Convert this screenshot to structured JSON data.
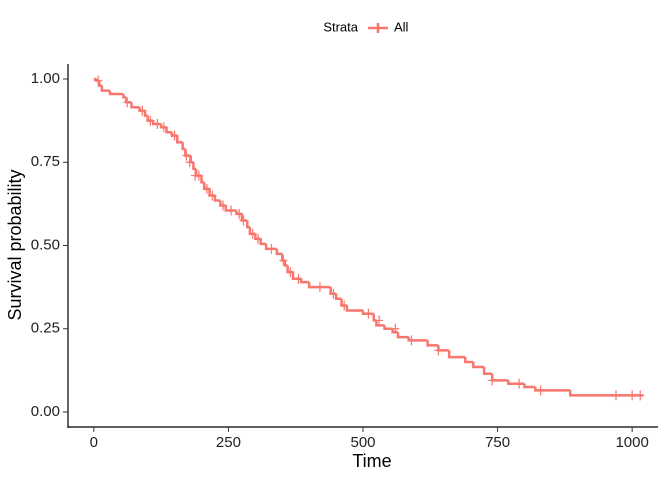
{
  "chart_data": {
    "type": "step",
    "x_label": "Time",
    "y_label": "Survival probability",
    "legend_title": "Strata",
    "legend_position": "top",
    "series": [
      {
        "name": "All",
        "color": "#F8766D",
        "x": [
          0,
          5,
          10,
          15,
          30,
          55,
          60,
          70,
          85,
          95,
          100,
          110,
          125,
          135,
          145,
          155,
          165,
          170,
          180,
          185,
          190,
          200,
          205,
          215,
          225,
          235,
          245,
          265,
          275,
          285,
          290,
          300,
          310,
          320,
          340,
          350,
          355,
          360,
          370,
          385,
          400,
          440,
          450,
          460,
          470,
          500,
          520,
          525,
          540,
          555,
          565,
          585,
          620,
          640,
          660,
          690,
          705,
          725,
          740,
          770,
          800,
          820,
          885,
          1020
        ],
        "values": [
          1.0,
          0.995,
          0.98,
          0.965,
          0.955,
          0.945,
          0.93,
          0.915,
          0.905,
          0.89,
          0.875,
          0.865,
          0.855,
          0.84,
          0.83,
          0.81,
          0.79,
          0.77,
          0.75,
          0.73,
          0.71,
          0.69,
          0.67,
          0.65,
          0.635,
          0.62,
          0.605,
          0.595,
          0.575,
          0.555,
          0.535,
          0.52,
          0.505,
          0.49,
          0.475,
          0.455,
          0.44,
          0.42,
          0.4,
          0.39,
          0.375,
          0.355,
          0.34,
          0.32,
          0.305,
          0.295,
          0.275,
          0.26,
          0.25,
          0.24,
          0.225,
          0.215,
          0.2,
          0.185,
          0.165,
          0.15,
          0.135,
          0.115,
          0.095,
          0.085,
          0.075,
          0.065,
          0.05,
          0.05
        ],
        "censored_x": [
          8,
          62,
          90,
          105,
          118,
          130,
          150,
          172,
          178,
          188,
          195,
          210,
          220,
          240,
          255,
          270,
          278,
          295,
          305,
          330,
          352,
          365,
          380,
          420,
          445,
          465,
          510,
          530,
          560,
          590,
          640,
          740,
          790,
          830,
          970,
          1000,
          1015
        ],
        "censored_values": [
          0.995,
          0.93,
          0.905,
          0.875,
          0.865,
          0.855,
          0.83,
          0.77,
          0.75,
          0.71,
          0.71,
          0.67,
          0.65,
          0.62,
          0.605,
          0.595,
          0.575,
          0.535,
          0.52,
          0.49,
          0.455,
          0.42,
          0.4,
          0.375,
          0.355,
          0.32,
          0.295,
          0.275,
          0.25,
          0.215,
          0.185,
          0.095,
          0.085,
          0.065,
          0.05,
          0.05,
          0.05
        ]
      }
    ],
    "xlim": [
      -48,
      1048
    ],
    "ylim": [
      -0.045,
      1.045
    ],
    "xticks": [
      0,
      250,
      500,
      750,
      1000
    ],
    "yticks": [
      {
        "value": 0,
        "label": "0.00"
      },
      {
        "value": 0.25,
        "label": "0.25"
      },
      {
        "value": 0.5,
        "label": "0.50"
      },
      {
        "value": 0.75,
        "label": "0.75"
      },
      {
        "value": 1,
        "label": "1.00"
      }
    ]
  }
}
